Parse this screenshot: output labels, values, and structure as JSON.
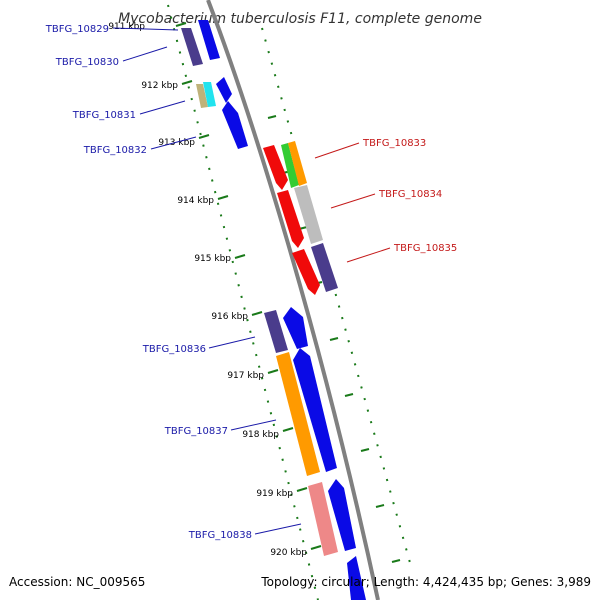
{
  "title": "Mycobacterium tuberculosis F11, complete genome",
  "footer": {
    "accession": "Accession: NC_009565",
    "summary": "Topology: circular; Length: 4,424,435 bp; Genes: 3,989"
  },
  "colors": {
    "backbone": "#808080",
    "tick": "#1a7a1a",
    "left_label": "#1a1aa8",
    "right_label": "#c41a1a"
  },
  "ticks": [
    {
      "label": "911 kbp"
    },
    {
      "label": "912 kbp"
    },
    {
      "label": "913 kbp"
    },
    {
      "label": "914 kbp"
    },
    {
      "label": "915 kbp"
    },
    {
      "label": "916 kbp"
    },
    {
      "label": "917 kbp"
    },
    {
      "label": "918 kbp"
    },
    {
      "label": "919 kbp"
    },
    {
      "label": "920 kbp"
    }
  ],
  "gene_labels": [
    {
      "text": "TBFG_10829",
      "side": "left"
    },
    {
      "text": "TBFG_10830",
      "side": "left"
    },
    {
      "text": "TBFG_10831",
      "side": "left"
    },
    {
      "text": "TBFG_10832",
      "side": "left"
    },
    {
      "text": "TBFG_10833",
      "side": "right"
    },
    {
      "text": "TBFG_10834",
      "side": "right"
    },
    {
      "text": "TBFG_10835",
      "side": "right"
    },
    {
      "text": "TBFG_10836",
      "side": "left"
    },
    {
      "text": "TBFG_10837",
      "side": "left"
    },
    {
      "text": "TBFG_10838",
      "side": "left"
    }
  ],
  "feature_colors": {
    "blue": "#0a0ae6",
    "navy": "#4a3c8c",
    "red": "#f00a0a",
    "green": "#33cc33",
    "orange": "#ff9a00",
    "silver": "#bdbdbd",
    "cyan": "#22e3ee",
    "khaki": "#bfb27a",
    "pink": "#ee8888"
  }
}
